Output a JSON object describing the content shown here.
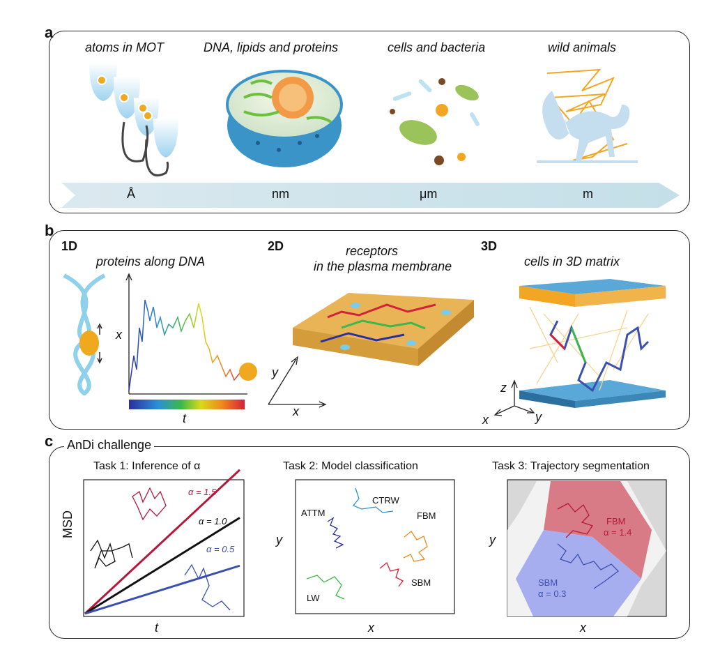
{
  "panel_a": {
    "letter": "a",
    "labels": [
      "atoms in MOT",
      "DNA, lipids and proteins",
      "cells and bacteria",
      "wild animals"
    ],
    "scales": [
      "Å",
      "nm",
      "μm",
      "m"
    ]
  },
  "panel_b": {
    "letter": "b",
    "dims": [
      "1D",
      "2D",
      "3D"
    ],
    "labels": [
      "proteins along DNA",
      "receptors",
      "in the plasma membrane",
      "cells in 3D matrix"
    ],
    "axes": {
      "x1": "x",
      "t1": "t",
      "y2": "y",
      "x2": "x",
      "z3": "z",
      "x3": "x",
      "y3": "y"
    }
  },
  "panel_c": {
    "letter": "c",
    "title": "AnDi challenge",
    "task1": {
      "title": "Task 1: Inference of α",
      "ylabel": "MSD",
      "xlabel": "t",
      "series": [
        {
          "name": "α = 1.5",
          "color": "#b5183a",
          "alpha": 1.5
        },
        {
          "name": "α = 1.0",
          "color": "#111111",
          "alpha": 1.0
        },
        {
          "name": "α = 0.5",
          "color": "#3a4fb0",
          "alpha": 0.5
        }
      ]
    },
    "task2": {
      "title": "Task 2: Model classification",
      "ylabel": "y",
      "xlabel": "x",
      "models": [
        "ATTM",
        "CTRW",
        "FBM",
        "LW",
        "SBM"
      ]
    },
    "task3": {
      "title": "Task 3: Trajectory segmentation",
      "ylabel": "y",
      "xlabel": "x",
      "seg1_name": "FBM",
      "seg1_alpha": "α = 1.4",
      "seg2_name": "SBM",
      "seg2_alpha": "α = 0.3"
    }
  }
}
